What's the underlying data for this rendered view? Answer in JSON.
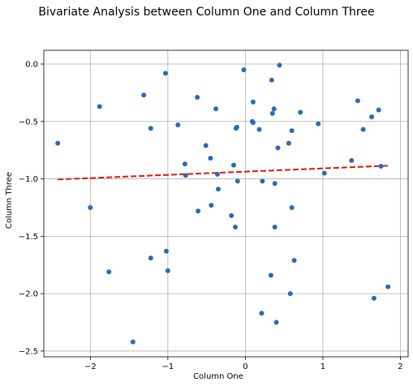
{
  "chart_data": {
    "type": "scatter",
    "title": "Bivariate Analysis between Column One and Column Three",
    "xlabel": "Column One",
    "ylabel": "Column Three",
    "xlim": [
      -2.6,
      2.1
    ],
    "ylim": [
      -2.55,
      0.12
    ],
    "grid": true,
    "x_ticks": [
      {
        "value": -2,
        "label": "−2"
      },
      {
        "value": -1,
        "label": "−1"
      },
      {
        "value": 0,
        "label": "0"
      },
      {
        "value": 1,
        "label": "1"
      },
      {
        "value": 2,
        "label": "2"
      }
    ],
    "y_ticks": [
      {
        "value": 0,
        "label": "0.0"
      },
      {
        "value": -0.5,
        "label": "−0.5"
      },
      {
        "value": -1,
        "label": "−1.0"
      },
      {
        "value": -1.5,
        "label": "−1.5"
      },
      {
        "value": -2,
        "label": "−2.0"
      },
      {
        "value": -2.5,
        "label": "−2.5"
      }
    ],
    "points": [
      {
        "x": -2.42,
        "y": -0.69
      },
      {
        "x": -2.0,
        "y": -1.25
      },
      {
        "x": -1.88,
        "y": -0.37
      },
      {
        "x": -1.76,
        "y": -1.81
      },
      {
        "x": -1.45,
        "y": -2.42
      },
      {
        "x": -1.31,
        "y": -0.27
      },
      {
        "x": -1.22,
        "y": -0.56
      },
      {
        "x": -1.22,
        "y": -1.69
      },
      {
        "x": -1.03,
        "y": -0.08
      },
      {
        "x": -1.02,
        "y": -1.63
      },
      {
        "x": -1.0,
        "y": -1.8
      },
      {
        "x": -0.87,
        "y": -0.53
      },
      {
        "x": -0.78,
        "y": -0.87
      },
      {
        "x": -0.77,
        "y": -0.97
      },
      {
        "x": -0.62,
        "y": -0.29
      },
      {
        "x": -0.61,
        "y": -1.28
      },
      {
        "x": -0.51,
        "y": -0.71
      },
      {
        "x": -0.45,
        "y": -0.82
      },
      {
        "x": -0.44,
        "y": -1.23
      },
      {
        "x": -0.38,
        "y": -0.39
      },
      {
        "x": -0.36,
        "y": -0.96
      },
      {
        "x": -0.35,
        "y": -1.09
      },
      {
        "x": -0.18,
        "y": -1.32
      },
      {
        "x": -0.15,
        "y": -0.88
      },
      {
        "x": -0.13,
        "y": -1.42
      },
      {
        "x": -0.12,
        "y": -0.56
      },
      {
        "x": -0.11,
        "y": -0.55
      },
      {
        "x": -0.1,
        "y": -1.02
      },
      {
        "x": -0.02,
        "y": -0.05
      },
      {
        "x": 0.09,
        "y": -0.5
      },
      {
        "x": 0.1,
        "y": -0.51
      },
      {
        "x": 0.1,
        "y": -0.33
      },
      {
        "x": 0.18,
        "y": -0.57
      },
      {
        "x": 0.21,
        "y": -2.17
      },
      {
        "x": 0.22,
        "y": -1.02
      },
      {
        "x": 0.33,
        "y": -1.84
      },
      {
        "x": 0.34,
        "y": -0.14
      },
      {
        "x": 0.35,
        "y": -0.43
      },
      {
        "x": 0.37,
        "y": -0.39
      },
      {
        "x": 0.38,
        "y": -1.04
      },
      {
        "x": 0.38,
        "y": -1.42
      },
      {
        "x": 0.4,
        "y": -2.25
      },
      {
        "x": 0.42,
        "y": -0.73
      },
      {
        "x": 0.44,
        "y": -0.01
      },
      {
        "x": 0.56,
        "y": -0.69
      },
      {
        "x": 0.58,
        "y": -2.0
      },
      {
        "x": 0.6,
        "y": -1.25
      },
      {
        "x": 0.6,
        "y": -0.58
      },
      {
        "x": 0.63,
        "y": -1.71
      },
      {
        "x": 0.71,
        "y": -0.42
      },
      {
        "x": 0.94,
        "y": -0.52
      },
      {
        "x": 1.02,
        "y": -0.95
      },
      {
        "x": 1.37,
        "y": -0.84
      },
      {
        "x": 1.45,
        "y": -0.32
      },
      {
        "x": 1.52,
        "y": -0.57
      },
      {
        "x": 1.63,
        "y": -0.46
      },
      {
        "x": 1.66,
        "y": -2.04
      },
      {
        "x": 1.72,
        "y": -0.4
      },
      {
        "x": 1.75,
        "y": -0.89
      },
      {
        "x": 1.84,
        "y": -1.94
      }
    ],
    "trend_line": {
      "x": [
        -2.42,
        1.85
      ],
      "y": [
        -1.005,
        -0.885
      ]
    },
    "colors": {
      "points": "#2a6ab8",
      "trend_line": "#e8130c",
      "grid": "#b0b0b0"
    }
  }
}
